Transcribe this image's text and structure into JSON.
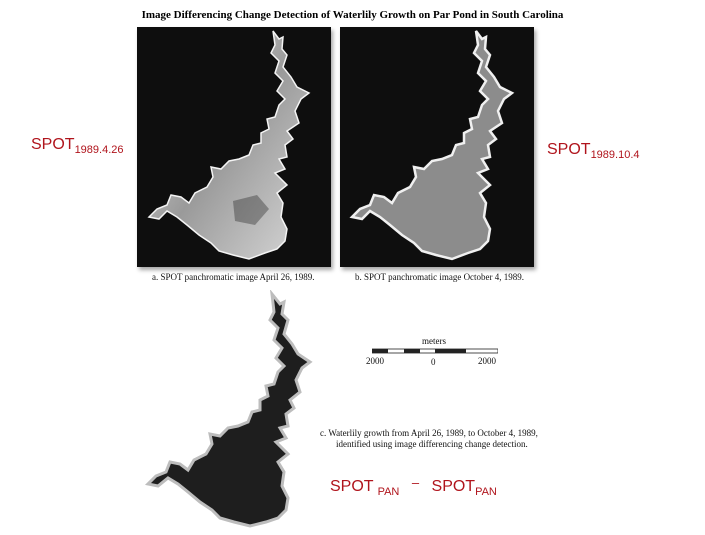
{
  "figure": {
    "title": "Image Differencing Change Detection of Waterlily Growth on Par Pond in South Carolina",
    "caption_a": "a. SPOT panchromatic image April 26, 1989.",
    "caption_b": "b. SPOT panchromatic image October 4, 1989.",
    "caption_c_line1": "c. Waterlily growth from April 26, 1989, to October 4, 1989,",
    "caption_c_line2": "identified using image differencing change detection."
  },
  "scale_bar": {
    "unit": "meters",
    "left": "2000",
    "center": "0",
    "right": "2000"
  },
  "labels": {
    "left_main": "SPOT",
    "left_sub": "1989.4.26",
    "right_main": "SPOT",
    "right_sub": "1989.10.4",
    "formula_a_main": "SPOT",
    "formula_a_sub": "PAN",
    "formula_op": "–",
    "formula_b_main": "SPOT",
    "formula_b_sub": "PAN"
  },
  "colors": {
    "annotation_red": "#b0141c",
    "photo_background": "#0e0e0e"
  }
}
